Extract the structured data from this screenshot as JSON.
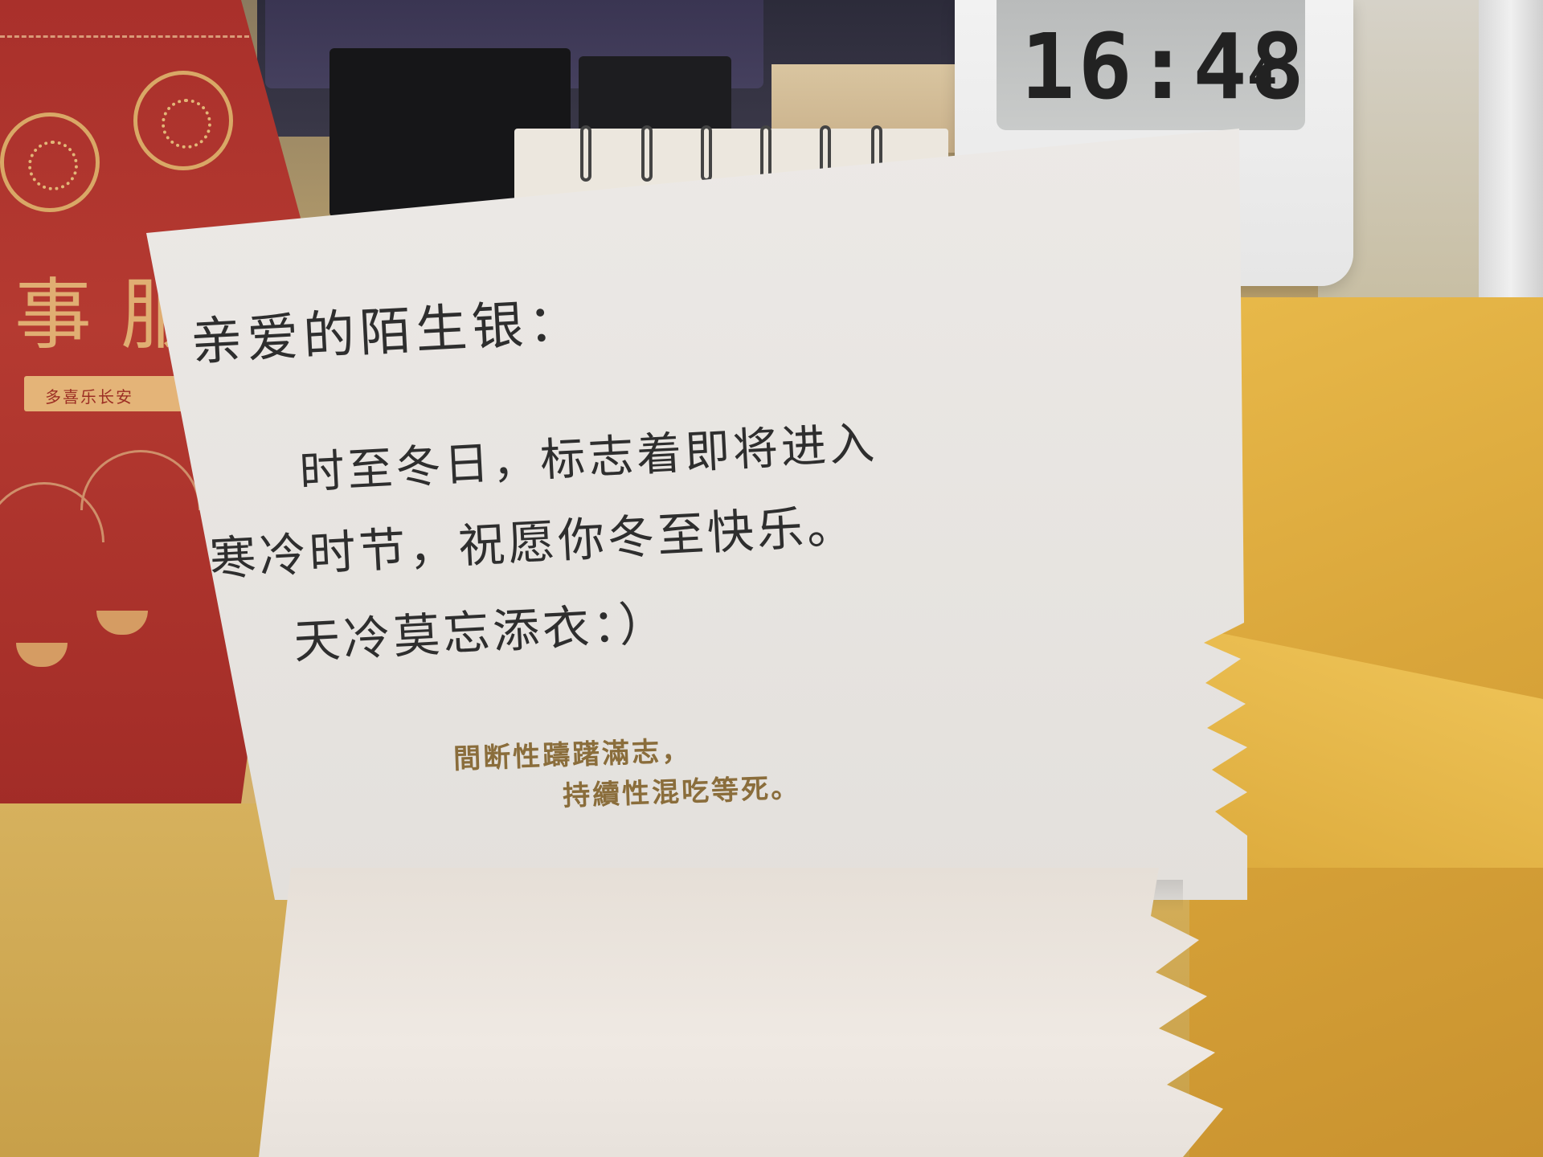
{
  "clock": {
    "time": "16:48",
    "seconds": "4"
  },
  "gift_box": {
    "char_left": "事",
    "char_right": "服",
    "ribbon_text": "多喜乐长安"
  },
  "card": {
    "greeting": "亲爱的陌生银：",
    "body_line1": "时至冬日，标志着即将进入",
    "body_line2": "寒冷时节，祝愿你冬至快乐。",
    "body_line3": "天冷莫忘添衣：）",
    "printed_line1": "間断性躊躇滿志，",
    "printed_line2": "持續性混吃等死。"
  },
  "colors": {
    "red_box": "#b53a31",
    "gold_print": "#8a6d3b",
    "envelope": "#e0b043",
    "card_paper": "#ece9e6",
    "ink": "#2e2e2e"
  }
}
